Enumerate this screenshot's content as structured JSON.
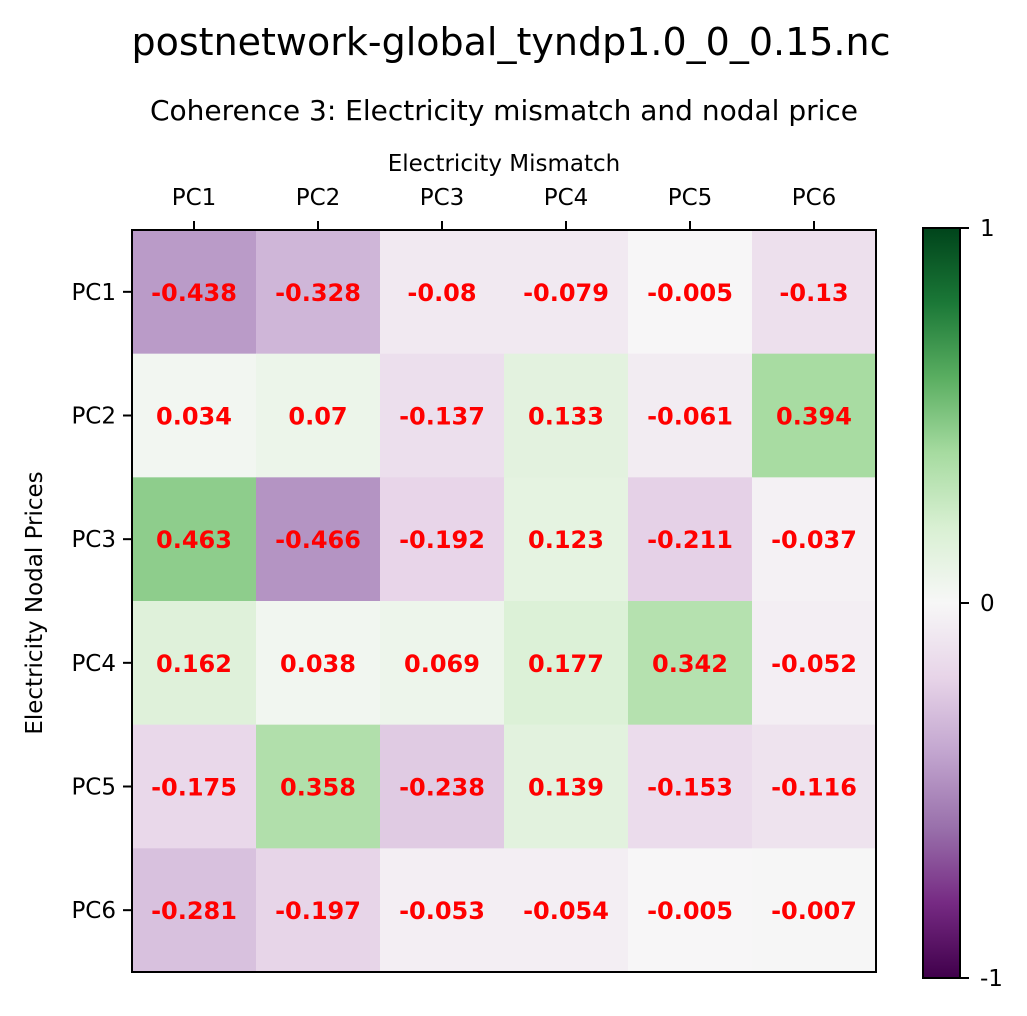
{
  "figure": {
    "suptitle": "postnetwork-global_tyndp1.0_0_0.15.nc"
  },
  "chart_data": {
    "type": "heatmap",
    "title": "Coherence 3: Electricity mismatch and nodal price",
    "xlabel": "Electricity Mismatch",
    "ylabel": "Electricity Nodal Prices",
    "xticks": [
      "PC1",
      "PC2",
      "PC3",
      "PC4",
      "PC5",
      "PC6"
    ],
    "yticks": [
      "PC1",
      "PC2",
      "PC3",
      "PC4",
      "PC5",
      "PC6"
    ],
    "values": [
      [
        -0.438,
        -0.328,
        -0.08,
        -0.079,
        -0.005,
        -0.13
      ],
      [
        0.034,
        0.07,
        -0.137,
        0.133,
        -0.061,
        0.394
      ],
      [
        0.463,
        -0.466,
        -0.192,
        0.123,
        -0.211,
        -0.037
      ],
      [
        0.162,
        0.038,
        0.069,
        0.177,
        0.342,
        -0.052
      ],
      [
        -0.175,
        0.358,
        -0.238,
        0.139,
        -0.153,
        -0.116
      ],
      [
        -0.281,
        -0.197,
        -0.053,
        -0.054,
        -0.005,
        -0.007
      ]
    ],
    "labels": [
      [
        "-0.438",
        "-0.328",
        "-0.08",
        "-0.079",
        "-0.005",
        "-0.13"
      ],
      [
        "0.034",
        "0.07",
        "-0.137",
        "0.133",
        "-0.061",
        "0.394"
      ],
      [
        "0.463",
        "-0.466",
        "-0.192",
        "0.123",
        "-0.211",
        "-0.037"
      ],
      [
        "0.162",
        "0.038",
        "0.069",
        "0.177",
        "0.342",
        "-0.052"
      ],
      [
        "-0.175",
        "0.358",
        "-0.238",
        "0.139",
        "-0.153",
        "-0.116"
      ],
      [
        "-0.281",
        "-0.197",
        "-0.053",
        "-0.054",
        "-0.005",
        "-0.007"
      ]
    ],
    "colormap": "PRGn",
    "vmin": -1,
    "vmax": 1,
    "annotation_color": "#ff0000",
    "colorbar": {
      "ticks": [
        1,
        0,
        -1
      ],
      "tick_labels": [
        "1",
        "0",
        "-1"
      ]
    },
    "grid": false
  }
}
